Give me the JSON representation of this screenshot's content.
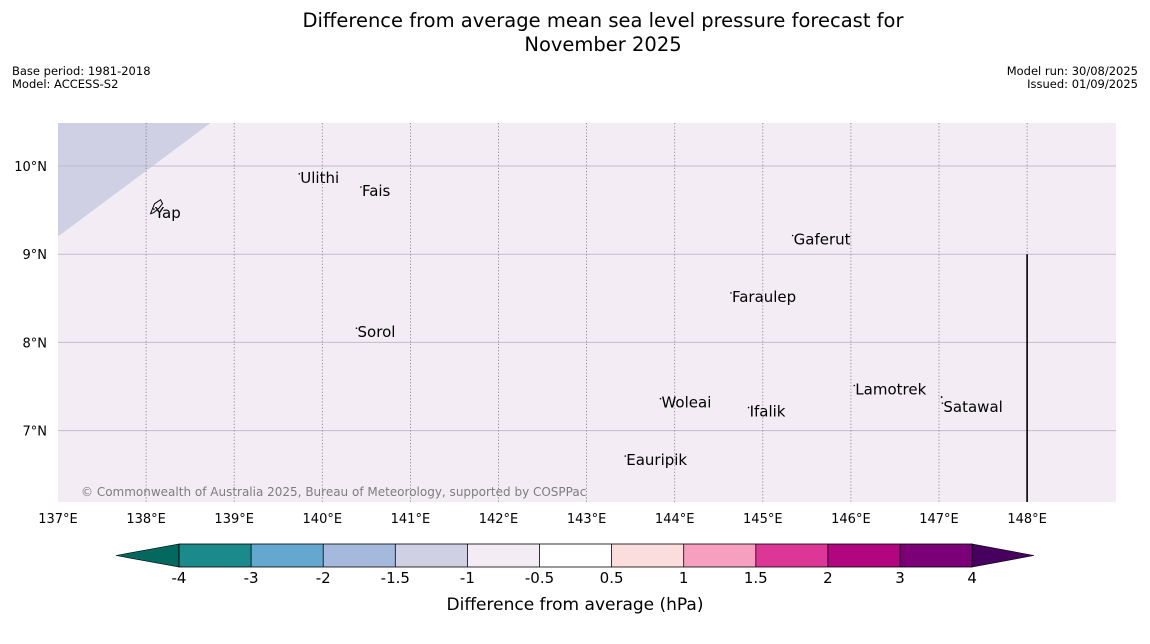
{
  "title_line1": "Difference from average mean sea level pressure forecast for",
  "title_line2": "November 2025",
  "meta_left": {
    "base_period": "Base period: 1981-2018",
    "model": "Model: ACCESS-S2"
  },
  "meta_right": {
    "model_run": "Model run: 30/08/2025",
    "issued": "Issued: 01/09/2025"
  },
  "map": {
    "lon_range": [
      137,
      149
    ],
    "lat_range": [
      6.2,
      10.5
    ],
    "lon_ticks": [
      137,
      138,
      139,
      140,
      141,
      142,
      143,
      144,
      145,
      146,
      147,
      148
    ],
    "lon_tick_labels": [
      "137°E",
      "138°E",
      "139°E",
      "140°E",
      "141°E",
      "142°E",
      "143°E",
      "144°E",
      "145°E",
      "146°E",
      "147°E",
      "148°E"
    ],
    "lat_ticks": [
      10,
      9,
      8,
      7
    ],
    "lat_tick_labels": [
      "10°N",
      "9°N",
      "8°N",
      "7°N"
    ],
    "background_color": "#f3ecf5",
    "anomaly_region_color": "#cfd0e3",
    "anomaly_region_range": "-1.5 to -1",
    "boundary_line_lon": 148,
    "boundary_line_lat_top": 9,
    "copyright": "© Commonwealth of Australia 2025, Bureau of Meteorology, supported by COSPPac",
    "islands": [
      {
        "name": "Ulithi",
        "lon": 139.75,
        "lat": 9.9
      },
      {
        "name": "Fais",
        "lon": 140.45,
        "lat": 9.75
      },
      {
        "name": "Yap",
        "lon": 138.1,
        "lat": 9.5
      },
      {
        "name": "Gaferut",
        "lon": 145.35,
        "lat": 9.2
      },
      {
        "name": "Faraulep",
        "lon": 144.65,
        "lat": 8.55
      },
      {
        "name": "Sorol",
        "lon": 140.4,
        "lat": 8.15
      },
      {
        "name": "Lamotrek",
        "lon": 146.05,
        "lat": 7.5
      },
      {
        "name": "Woleai",
        "lon": 143.85,
        "lat": 7.35
      },
      {
        "name": "Ifalik",
        "lon": 144.85,
        "lat": 7.25
      },
      {
        "name": "Satawal",
        "lon": 147.05,
        "lat": 7.3
      },
      {
        "name": "Eauripik",
        "lon": 143.45,
        "lat": 6.7
      }
    ]
  },
  "colorbar": {
    "label": "Difference from average (hPa)",
    "tick_labels": [
      "-4",
      "-3",
      "-2",
      "-1.5",
      "-1",
      "-0.5",
      "0.5",
      "1",
      "1.5",
      "2",
      "3",
      "4"
    ],
    "colors": [
      "#1a8a8a",
      "#64a7cf",
      "#a5b9dc",
      "#cfd0e3",
      "#f3ecf5",
      "#ffffff",
      "#fcdddd",
      "#f79fbe",
      "#dc3697",
      "#b1067f",
      "#7b0078"
    ],
    "extend_low_color": "#03685d",
    "extend_high_color": "#480060"
  }
}
